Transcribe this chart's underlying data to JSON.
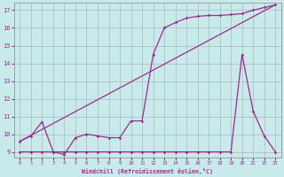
{
  "xlabel": "Windchill (Refroidissement éolien,°C)",
  "bg_color": "#c8eaea",
  "line_color": "#9b2d8e",
  "grid_color": "#aaaaaa",
  "xlim": [
    -0.5,
    23.5
  ],
  "ylim": [
    8.7,
    17.4
  ],
  "yticks": [
    9,
    10,
    11,
    12,
    13,
    14,
    15,
    16,
    17
  ],
  "xticks": [
    0,
    1,
    2,
    3,
    4,
    5,
    6,
    7,
    8,
    9,
    10,
    11,
    12,
    13,
    14,
    15,
    16,
    17,
    18,
    19,
    20,
    21,
    22,
    23
  ],
  "line1_x": [
    0,
    23
  ],
  "line1_y": [
    9.6,
    17.3
  ],
  "line2_x": [
    0,
    1,
    2,
    3,
    4,
    5,
    6,
    7,
    8,
    9,
    10,
    11,
    12,
    13,
    14,
    15,
    16,
    17,
    18,
    19,
    20,
    21,
    22,
    23
  ],
  "line2_y": [
    9.6,
    9.9,
    10.7,
    9.0,
    8.85,
    9.8,
    10.0,
    9.9,
    9.8,
    9.8,
    10.75,
    10.75,
    14.5,
    16.0,
    16.3,
    16.55,
    16.65,
    16.7,
    16.7,
    16.75,
    16.8,
    17.0,
    17.15,
    17.3
  ],
  "line3_x": [
    0,
    1,
    2,
    3,
    4,
    5,
    6,
    7,
    8,
    9,
    10,
    11,
    12,
    13,
    14,
    15,
    16,
    17,
    18,
    19,
    20,
    21,
    22,
    23
  ],
  "line3_y": [
    9.0,
    9.0,
    9.0,
    9.0,
    9.0,
    9.0,
    9.0,
    9.0,
    9.0,
    9.0,
    9.0,
    9.0,
    9.0,
    9.0,
    9.0,
    9.0,
    9.0,
    9.0,
    9.0,
    9.0,
    14.5,
    11.3,
    9.9,
    9.0
  ],
  "line1_marker": false,
  "line2_marker": true,
  "line3_marker": true
}
